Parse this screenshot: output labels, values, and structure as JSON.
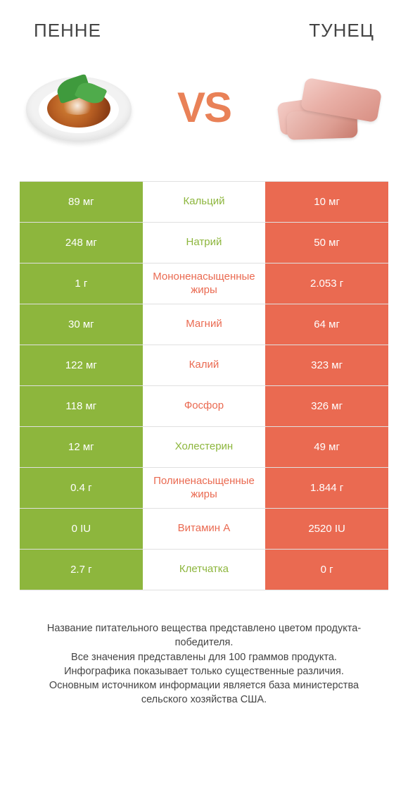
{
  "titles": {
    "left": "ПЕННЕ",
    "right": "ТУНЕЦ"
  },
  "vs_label": "VS",
  "colors": {
    "left": "#8db63d",
    "right": "#ea6a51",
    "row_border": "#e0e0e0",
    "text": "#444444",
    "vs": "#e98157"
  },
  "font": {
    "title_size": 26,
    "vs_size": 60,
    "cell_size": 15,
    "footnote_size": 14.5
  },
  "rows": [
    {
      "label": "Кальций",
      "left": "89 мг",
      "right": "10 мг",
      "winner": "left"
    },
    {
      "label": "Натрий",
      "left": "248 мг",
      "right": "50 мг",
      "winner": "left"
    },
    {
      "label": "Мононенасыщенные жиры",
      "left": "1 г",
      "right": "2.053 г",
      "winner": "right"
    },
    {
      "label": "Магний",
      "left": "30 мг",
      "right": "64 мг",
      "winner": "right"
    },
    {
      "label": "Калий",
      "left": "122 мг",
      "right": "323 мг",
      "winner": "right"
    },
    {
      "label": "Фосфор",
      "left": "118 мг",
      "right": "326 мг",
      "winner": "right"
    },
    {
      "label": "Холестерин",
      "left": "12 мг",
      "right": "49 мг",
      "winner": "left"
    },
    {
      "label": "Полиненасыщенные жиры",
      "left": "0.4 г",
      "right": "1.844 г",
      "winner": "right"
    },
    {
      "label": "Витамин A",
      "left": "0 IU",
      "right": "2520 IU",
      "winner": "right"
    },
    {
      "label": "Клетчатка",
      "left": "2.7 г",
      "right": "0 г",
      "winner": "left"
    }
  ],
  "footnote": "Название питательного вещества представлено цветом продукта-победителя.\nВсе значения представлены для 100 граммов продукта.\nИнфографика показывает только существенные различия.\nОсновным источником информации является база министерства сельского хозяйства США."
}
